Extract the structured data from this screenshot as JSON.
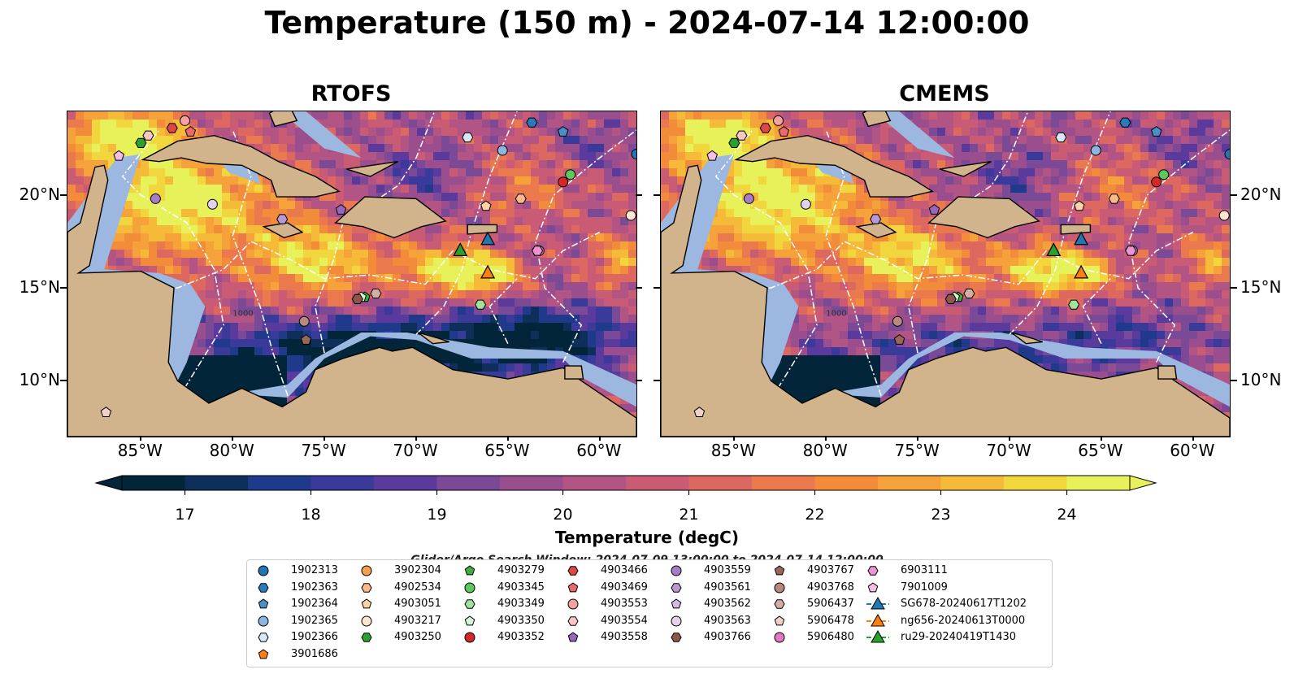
{
  "title": "Temperature (150 m) - 2024-07-14 12:00:00",
  "panels": [
    {
      "title": "RTOFS"
    },
    {
      "title": "CMEMS"
    }
  ],
  "colors": {
    "land": "#d2b48c",
    "shelf": "#9db8e0",
    "deep": "#0a2238",
    "eez_line": "#ffffff",
    "palette": [
      "#03253a",
      "#0d2f5a",
      "#1f3a8a",
      "#3a3a9a",
      "#5a3a9c",
      "#7a4a96",
      "#9a4e8e",
      "#b25484",
      "#c95c74",
      "#dd6860",
      "#ea7a4e",
      "#f28c3a",
      "#f6a23a",
      "#f5bb38",
      "#f1d63d",
      "#e7f25a"
    ]
  },
  "chart_data": {
    "type": "heatmap",
    "variable": "Temperature",
    "depth_m": 150,
    "datetime": "2024-07-14 12:00:00",
    "x_ticks": [
      "85°W",
      "80°W",
      "75°W",
      "70°W",
      "65°W",
      "60°W"
    ],
    "x_tick_values": [
      -85,
      -80,
      -75,
      -70,
      -65,
      -60
    ],
    "y_ticks": [
      "20°N",
      "15°N",
      "10°N"
    ],
    "y_tick_values": [
      20,
      15,
      10
    ],
    "lon_range": [
      -89,
      -58
    ],
    "lat_range": [
      7,
      24.5
    ],
    "colorbar": {
      "label": "Temperature (degC)",
      "range": [
        16.5,
        24.5
      ],
      "step": 0.5,
      "tick_values": [
        17,
        18,
        19,
        20,
        21,
        22,
        23,
        24
      ],
      "tick_labels": [
        "17",
        "18",
        "19",
        "20",
        "21",
        "22",
        "23",
        "24"
      ],
      "extend": "both"
    },
    "search_window": "Glider/Argo Search Window: 2024-07-09 13:00:00 to 2024-07-14 12:00:00",
    "legend_placement": "bottom-center",
    "isobath_labels": [
      "1000"
    ],
    "platforms": [
      {
        "id": "1902313",
        "marker": "circle",
        "color": "#1f77b4",
        "lon": -58.0,
        "lat": 22.2
      },
      {
        "id": "1902363",
        "marker": "hexagon",
        "color": "#2b7bba",
        "lon": -63.7,
        "lat": 23.9
      },
      {
        "id": "1902364",
        "marker": "pentagon",
        "color": "#4a90c8",
        "lon": -62.0,
        "lat": 23.4
      },
      {
        "id": "1902365",
        "marker": "circle",
        "color": "#8ab6e0",
        "lon": -65.3,
        "lat": 22.4
      },
      {
        "id": "1902366",
        "marker": "hexagon",
        "color": "#d6e8f6",
        "lon": -67.2,
        "lat": 23.1
      },
      {
        "id": "3901686",
        "marker": "pentagon",
        "color": "#ff7f0e",
        "lon": -57.5,
        "lat": 22.2
      },
      {
        "id": "3902304",
        "marker": "circle",
        "color": "#f5a050",
        "lon": -57.3,
        "lat": 22.0
      },
      {
        "id": "4902534",
        "marker": "hexagon",
        "color": "#f9b98a",
        "lon": -64.3,
        "lat": 19.8
      },
      {
        "id": "4903051",
        "marker": "pentagon",
        "color": "#fcd3a8",
        "lon": -66.2,
        "lat": 19.4
      },
      {
        "id": "4903217",
        "marker": "circle",
        "color": "#fde6cf",
        "lon": -58.3,
        "lat": 18.9
      },
      {
        "id": "4903250",
        "marker": "hexagon",
        "color": "#2ca02c",
        "lon": -85.0,
        "lat": 22.8
      },
      {
        "id": "4903279",
        "marker": "pentagon",
        "color": "#3fae3f",
        "lon": -72.8,
        "lat": 14.5
      },
      {
        "id": "4903345",
        "marker": "circle",
        "color": "#5cc75c",
        "lon": -61.6,
        "lat": 21.1
      },
      {
        "id": "4903349",
        "marker": "hexagon",
        "color": "#9ee39e",
        "lon": -66.5,
        "lat": 14.1
      },
      {
        "id": "4903350",
        "marker": "pentagon",
        "color": "#d4f4d4",
        "lon": -73.0,
        "lat": 14.5
      },
      {
        "id": "4903352",
        "marker": "circle",
        "color": "#d62728",
        "lon": -62.0,
        "lat": 20.7
      },
      {
        "id": "4903466",
        "marker": "hexagon",
        "color": "#e04648",
        "lon": -83.3,
        "lat": 23.6
      },
      {
        "id": "4903469",
        "marker": "pentagon",
        "color": "#e86a6a",
        "lon": -82.3,
        "lat": 23.4
      },
      {
        "id": "4903553",
        "marker": "circle",
        "color": "#f4a1a1",
        "lon": -82.6,
        "lat": 24.0
      },
      {
        "id": "4903554",
        "marker": "hexagon",
        "color": "#f8c6c6",
        "lon": -84.6,
        "lat": 23.2
      },
      {
        "id": "4903558",
        "marker": "pentagon",
        "color": "#9467bd",
        "lon": -74.1,
        "lat": 19.2
      },
      {
        "id": "4903559",
        "marker": "circle",
        "color": "#a47cc8",
        "lon": -84.2,
        "lat": 19.8
      },
      {
        "id": "4903561",
        "marker": "hexagon",
        "color": "#b898d6",
        "lon": -77.3,
        "lat": 18.7
      },
      {
        "id": "4903562",
        "marker": "pentagon",
        "color": "#d2bce6",
        "lon": -63.4,
        "lat": 17.0
      },
      {
        "id": "4903563",
        "marker": "circle",
        "color": "#e2d2f0",
        "lon": -81.1,
        "lat": 19.5
      },
      {
        "id": "4903766",
        "marker": "hexagon",
        "color": "#8c564b",
        "lon": -73.2,
        "lat": 14.4
      },
      {
        "id": "4903767",
        "marker": "pentagon",
        "color": "#9a6658",
        "lon": -76.0,
        "lat": 12.2
      },
      {
        "id": "4903768",
        "marker": "circle",
        "color": "#b78a7e",
        "lon": -76.1,
        "lat": 13.2
      },
      {
        "id": "5906437",
        "marker": "hexagon",
        "color": "#d2aea4",
        "lon": -72.2,
        "lat": 14.7
      },
      {
        "id": "5906478",
        "marker": "pentagon",
        "color": "#f2d0c8",
        "lon": -86.9,
        "lat": 8.3
      },
      {
        "id": "5906480",
        "marker": "circle",
        "color": "#e377c2",
        "lon": -63.3,
        "lat": 17.0
      },
      {
        "id": "6903111",
        "marker": "hexagon",
        "color": "#ec94d2",
        "lon": -63.4,
        "lat": 17.0
      },
      {
        "id": "7901009",
        "marker": "pentagon",
        "color": "#f6bde6",
        "lon": -86.2,
        "lat": 22.1
      },
      {
        "id": "SG678-20240617T1202",
        "marker": "triangle",
        "color": "#1f77b4",
        "lon": -66.1,
        "lat": 17.6
      },
      {
        "id": "ng656-20240613T0000",
        "marker": "triangle",
        "color": "#ff7f0e",
        "lon": -66.1,
        "lat": 15.8
      },
      {
        "id": "ru29-20240419T1430",
        "marker": "triangle",
        "color": "#2ca02c",
        "lon": -67.6,
        "lat": 17.0
      }
    ]
  }
}
